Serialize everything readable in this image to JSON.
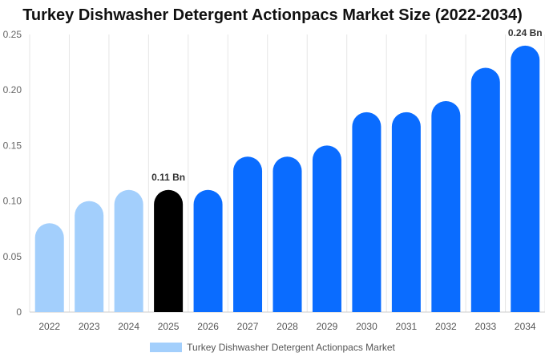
{
  "chart_data": {
    "type": "bar",
    "title": "Turkey Dishwasher Detergent Actionpacs Market Size (2022-2034)",
    "categories": [
      "2022",
      "2023",
      "2024",
      "2025",
      "2026",
      "2027",
      "2028",
      "2029",
      "2030",
      "2031",
      "2032",
      "2033",
      "2034"
    ],
    "series": [
      {
        "name": "Turkey Dishwasher Detergent Actionpacs Market",
        "values": [
          0.08,
          0.1,
          0.11,
          0.11,
          0.11,
          0.14,
          0.14,
          0.15,
          0.18,
          0.18,
          0.19,
          0.22,
          0.24
        ]
      }
    ],
    "bar_colors": [
      "#a3cffc",
      "#a3cffc",
      "#a3cffc",
      "#000000",
      "#0a6cff",
      "#0a6cff",
      "#0a6cff",
      "#0a6cff",
      "#0a6cff",
      "#0a6cff",
      "#0a6cff",
      "#0a6cff",
      "#0a6cff"
    ],
    "legend_color": "#a3cffc",
    "data_labels": [
      {
        "index": 3,
        "text": "0.11 Bn"
      },
      {
        "index": 12,
        "text": "0.24 Bn"
      }
    ],
    "yticks": [
      "0",
      "0.05",
      "0.10",
      "0.15",
      "0.20",
      "0.25"
    ],
    "ylim": [
      0,
      0.25
    ],
    "grid": "vertical",
    "legend_position": "bottom"
  }
}
